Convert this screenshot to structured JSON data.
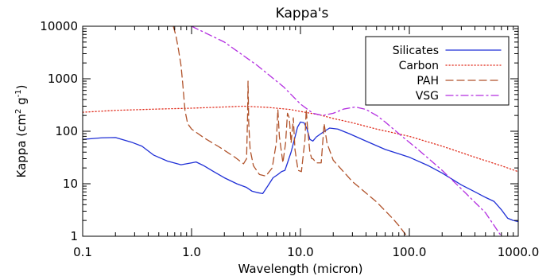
{
  "chart_data": {
    "type": "line",
    "title": "Kappa's",
    "xlabel": "Wavelength (micron)",
    "ylabel_text": "Kappa (cm",
    "ylabel_sup1": "2",
    "ylabel_mid": " g",
    "ylabel_sup2": "-1",
    "ylabel_end": ")",
    "xscale": "log",
    "yscale": "log",
    "xlim": [
      0.1,
      1000
    ],
    "ylim": [
      1,
      10000
    ],
    "x_ticks": [
      {
        "value": 0.1,
        "label": "0.1"
      },
      {
        "value": 1,
        "label": "1.0"
      },
      {
        "value": 10,
        "label": "10.0"
      },
      {
        "value": 100,
        "label": "100.0"
      },
      {
        "value": 1000,
        "label": "1000.0"
      }
    ],
    "y_ticks": [
      {
        "value": 1,
        "label": "1"
      },
      {
        "value": 10,
        "label": "10"
      },
      {
        "value": 100,
        "label": "100"
      },
      {
        "value": 1000,
        "label": "1000"
      },
      {
        "value": 10000,
        "label": "10000"
      }
    ],
    "grid": false,
    "legend_position": "top-right",
    "series": [
      {
        "name": "Silicates",
        "color": "#1f2fd6",
        "dash": "solid",
        "points": [
          [
            0.1,
            70
          ],
          [
            0.15,
            75
          ],
          [
            0.2,
            76
          ],
          [
            0.28,
            62
          ],
          [
            0.35,
            52
          ],
          [
            0.45,
            35
          ],
          [
            0.6,
            27
          ],
          [
            0.8,
            23
          ],
          [
            1.0,
            25
          ],
          [
            1.1,
            26
          ],
          [
            1.3,
            22
          ],
          [
            1.6,
            17
          ],
          [
            2.0,
            13
          ],
          [
            2.6,
            10
          ],
          [
            3.2,
            8.5
          ],
          [
            3.6,
            7.2
          ],
          [
            4.0,
            6.8
          ],
          [
            4.5,
            6.5
          ],
          [
            5.0,
            9
          ],
          [
            5.6,
            13
          ],
          [
            6.2,
            15
          ],
          [
            6.7,
            17
          ],
          [
            7.2,
            18
          ],
          [
            7.6,
            25
          ],
          [
            8.2,
            40
          ],
          [
            8.8,
            70
          ],
          [
            9.4,
            120
          ],
          [
            10,
            150
          ],
          [
            10.8,
            145
          ],
          [
            11.5,
            110
          ],
          [
            12.2,
            70
          ],
          [
            13,
            65
          ],
          [
            14,
            78
          ],
          [
            16,
            95
          ],
          [
            18.5,
            115
          ],
          [
            22,
            110
          ],
          [
            28,
            90
          ],
          [
            40,
            65
          ],
          [
            60,
            45
          ],
          [
            100,
            32
          ],
          [
            150,
            22
          ],
          [
            200,
            16
          ],
          [
            300,
            9.5
          ],
          [
            400,
            7
          ],
          [
            500,
            5.5
          ],
          [
            600,
            4.6
          ],
          [
            700,
            3.2
          ],
          [
            800,
            2.2
          ],
          [
            900,
            2.0
          ],
          [
            1000,
            1.9
          ]
        ]
      },
      {
        "name": "Carbon",
        "color": "#e02a1a",
        "dash": "dotted",
        "points": [
          [
            0.1,
            230
          ],
          [
            0.2,
            250
          ],
          [
            0.5,
            265
          ],
          [
            1.0,
            275
          ],
          [
            2.0,
            290
          ],
          [
            3.0,
            300
          ],
          [
            5.0,
            285
          ],
          [
            8.0,
            260
          ],
          [
            11.0,
            230
          ],
          [
            15.0,
            205
          ],
          [
            20.0,
            175
          ],
          [
            30.0,
            145
          ],
          [
            50.0,
            110
          ],
          [
            100.0,
            80
          ],
          [
            200.0,
            52
          ],
          [
            400.0,
            32
          ],
          [
            700.0,
            22
          ],
          [
            1000.0,
            17
          ]
        ]
      },
      {
        "name": "PAH",
        "color": "#b0522a",
        "dash": "dashed",
        "points": [
          [
            0.68,
            10000
          ],
          [
            0.72,
            6500
          ],
          [
            0.76,
            3500
          ],
          [
            0.8,
            1800
          ],
          [
            0.83,
            800
          ],
          [
            0.87,
            250
          ],
          [
            0.92,
            140
          ],
          [
            1.0,
            110
          ],
          [
            1.3,
            75
          ],
          [
            1.8,
            50
          ],
          [
            2.5,
            32
          ],
          [
            3.0,
            24
          ],
          [
            3.2,
            30
          ],
          [
            3.27,
            200
          ],
          [
            3.3,
            900
          ],
          [
            3.35,
            140
          ],
          [
            3.45,
            45
          ],
          [
            3.7,
            22
          ],
          [
            4.2,
            15
          ],
          [
            4.8,
            14
          ],
          [
            5.5,
            20
          ],
          [
            6.0,
            60
          ],
          [
            6.2,
            260
          ],
          [
            6.4,
            80
          ],
          [
            6.9,
            25
          ],
          [
            7.3,
            60
          ],
          [
            7.6,
            220
          ],
          [
            7.9,
            180
          ],
          [
            8.2,
            60
          ],
          [
            8.5,
            130
          ],
          [
            8.6,
            180
          ],
          [
            8.9,
            45
          ],
          [
            9.5,
            18
          ],
          [
            10.2,
            17
          ],
          [
            11.0,
            70
          ],
          [
            11.3,
            260
          ],
          [
            11.6,
            120
          ],
          [
            12.2,
            40
          ],
          [
            12.7,
            30
          ],
          [
            13.0,
            30
          ],
          [
            14.0,
            25
          ],
          [
            15.5,
            25
          ],
          [
            16.5,
            140
          ],
          [
            17.5,
            60
          ],
          [
            20.0,
            28
          ],
          [
            30.0,
            11
          ],
          [
            50.0,
            4.5
          ],
          [
            70.0,
            2.2
          ],
          [
            80.0,
            1.6
          ],
          [
            95.0,
            1
          ]
        ]
      },
      {
        "name": "VSG",
        "color": "#b32ee0",
        "dash": "dashdot",
        "points": [
          [
            1.0,
            10000
          ],
          [
            2.0,
            5000
          ],
          [
            4.0,
            1800
          ],
          [
            7.0,
            700
          ],
          [
            10.0,
            330
          ],
          [
            13.0,
            220
          ],
          [
            16.0,
            200
          ],
          [
            20.0,
            220
          ],
          [
            25.0,
            265
          ],
          [
            32.0,
            290
          ],
          [
            40.0,
            260
          ],
          [
            50.0,
            200
          ],
          [
            60.0,
            150
          ],
          [
            80.0,
            90
          ],
          [
            120.0,
            45
          ],
          [
            200.0,
            18
          ],
          [
            300.0,
            8
          ],
          [
            500.0,
            2.8
          ],
          [
            700.0,
            1
          ]
        ]
      }
    ]
  }
}
